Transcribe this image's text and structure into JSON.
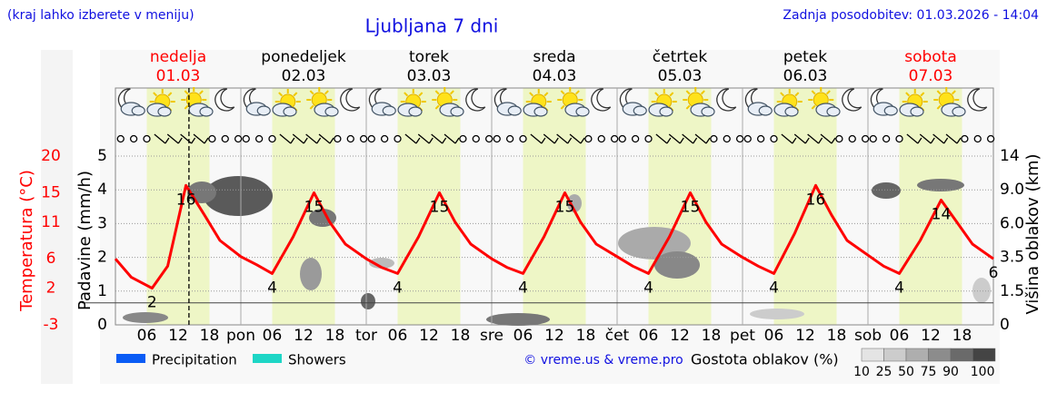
{
  "chart_data": {
    "type": "line",
    "title": "Ljubljana 7 dni",
    "note": "(kraj lahko izberete v meniju)",
    "updated": "Zadnja posodobitev: 01.03.2026 - 14:04",
    "credit": "© vreme.us & vreme.pro",
    "days": [
      {
        "name": "nedelja",
        "date": "01.03",
        "color": "#ff0000"
      },
      {
        "name": "ponedeljek",
        "date": "02.03",
        "color": "#000000"
      },
      {
        "name": "torek",
        "date": "03.03",
        "color": "#000000"
      },
      {
        "name": "sreda",
        "date": "04.03",
        "color": "#000000"
      },
      {
        "name": "četrtek",
        "date": "05.03",
        "color": "#000000"
      },
      {
        "name": "petek",
        "date": "06.03",
        "color": "#000000"
      },
      {
        "name": "sobota",
        "date": "07.03",
        "color": "#ff0000"
      }
    ],
    "xlim": [
      0,
      168
    ],
    "xticks": [
      {
        "value": 6,
        "label": "06"
      },
      {
        "value": 12,
        "label": "12"
      },
      {
        "value": 18,
        "label": "18"
      },
      {
        "value": 24,
        "label": "pon"
      },
      {
        "value": 30,
        "label": "06"
      },
      {
        "value": 36,
        "label": "12"
      },
      {
        "value": 42,
        "label": "18"
      },
      {
        "value": 48,
        "label": "tor"
      },
      {
        "value": 54,
        "label": "06"
      },
      {
        "value": 60,
        "label": "12"
      },
      {
        "value": 66,
        "label": "18"
      },
      {
        "value": 72,
        "label": "sre"
      },
      {
        "value": 78,
        "label": "06"
      },
      {
        "value": 84,
        "label": "12"
      },
      {
        "value": 90,
        "label": "18"
      },
      {
        "value": 96,
        "label": "čet"
      },
      {
        "value": 102,
        "label": "06"
      },
      {
        "value": 108,
        "label": "12"
      },
      {
        "value": 114,
        "label": "18"
      },
      {
        "value": 120,
        "label": "pet"
      },
      {
        "value": 126,
        "label": "06"
      },
      {
        "value": 132,
        "label": "12"
      },
      {
        "value": 138,
        "label": "18"
      },
      {
        "value": 144,
        "label": "sob"
      },
      {
        "value": 150,
        "label": "06"
      },
      {
        "value": 156,
        "label": "12"
      },
      {
        "value": 162,
        "label": "18"
      }
    ],
    "ylabel": "Padavine (mm/h)",
    "ylim": [
      0,
      5
    ],
    "yticks": [
      0,
      1,
      2,
      3,
      4,
      5
    ],
    "temp_label": "Temperatura (°C)",
    "temp_lim": [
      -3,
      20
    ],
    "temp_ticks": [
      -3,
      2,
      6,
      11,
      15,
      20
    ],
    "y2label": "Višina oblakov (km)",
    "y2lim": [
      0,
      14
    ],
    "y2ticks": [
      0,
      1.5,
      3.5,
      {
        "value": 6,
        "label": "6.0"
      },
      {
        "value": 9,
        "label": "9.0"
      },
      14
    ],
    "grid": true,
    "temperature": {
      "color": "#ff0000",
      "x": [
        0,
        3,
        7,
        10,
        13.5,
        17,
        20,
        24,
        27,
        30,
        34,
        38,
        41,
        44,
        48,
        51,
        54,
        58,
        62,
        65,
        68,
        72,
        75,
        78,
        82,
        86,
        89,
        92,
        96,
        99,
        102,
        106,
        110,
        113,
        116,
        120,
        123,
        126,
        130,
        134,
        137,
        140,
        144,
        147,
        150,
        154,
        158,
        161,
        164,
        168
      ],
      "values": [
        6,
        3.5,
        2,
        5,
        16,
        12,
        8.5,
        6.3,
        5.2,
        4,
        9,
        15,
        11,
        8,
        6,
        4.8,
        4,
        9,
        15,
        11,
        8,
        6,
        4.8,
        4,
        9,
        15,
        11,
        8,
        6.3,
        5,
        4,
        9,
        15,
        11,
        8,
        6.2,
        5,
        4,
        9.5,
        16,
        12,
        8.5,
        6.5,
        5,
        4,
        8.5,
        14,
        11,
        8,
        6
      ]
    },
    "extremes": {
      "x": [
        7,
        13.5,
        30,
        38,
        54,
        62,
        78,
        86,
        102,
        110,
        126,
        134,
        150,
        158,
        168
      ],
      "values": [
        2,
        16,
        4,
        15,
        4,
        15,
        4,
        15,
        4,
        15,
        4,
        16,
        4,
        14,
        6
      ]
    },
    "now_x": 14.07,
    "legend": [
      {
        "name": "Precipitation",
        "color": "#0a5cf5"
      },
      {
        "name": "Showers",
        "color": "#1ed6c6"
      }
    ],
    "density_label": "Gostota oblakov (%)",
    "density_ticks": [
      10,
      25,
      50,
      75,
      90,
      100
    ]
  }
}
